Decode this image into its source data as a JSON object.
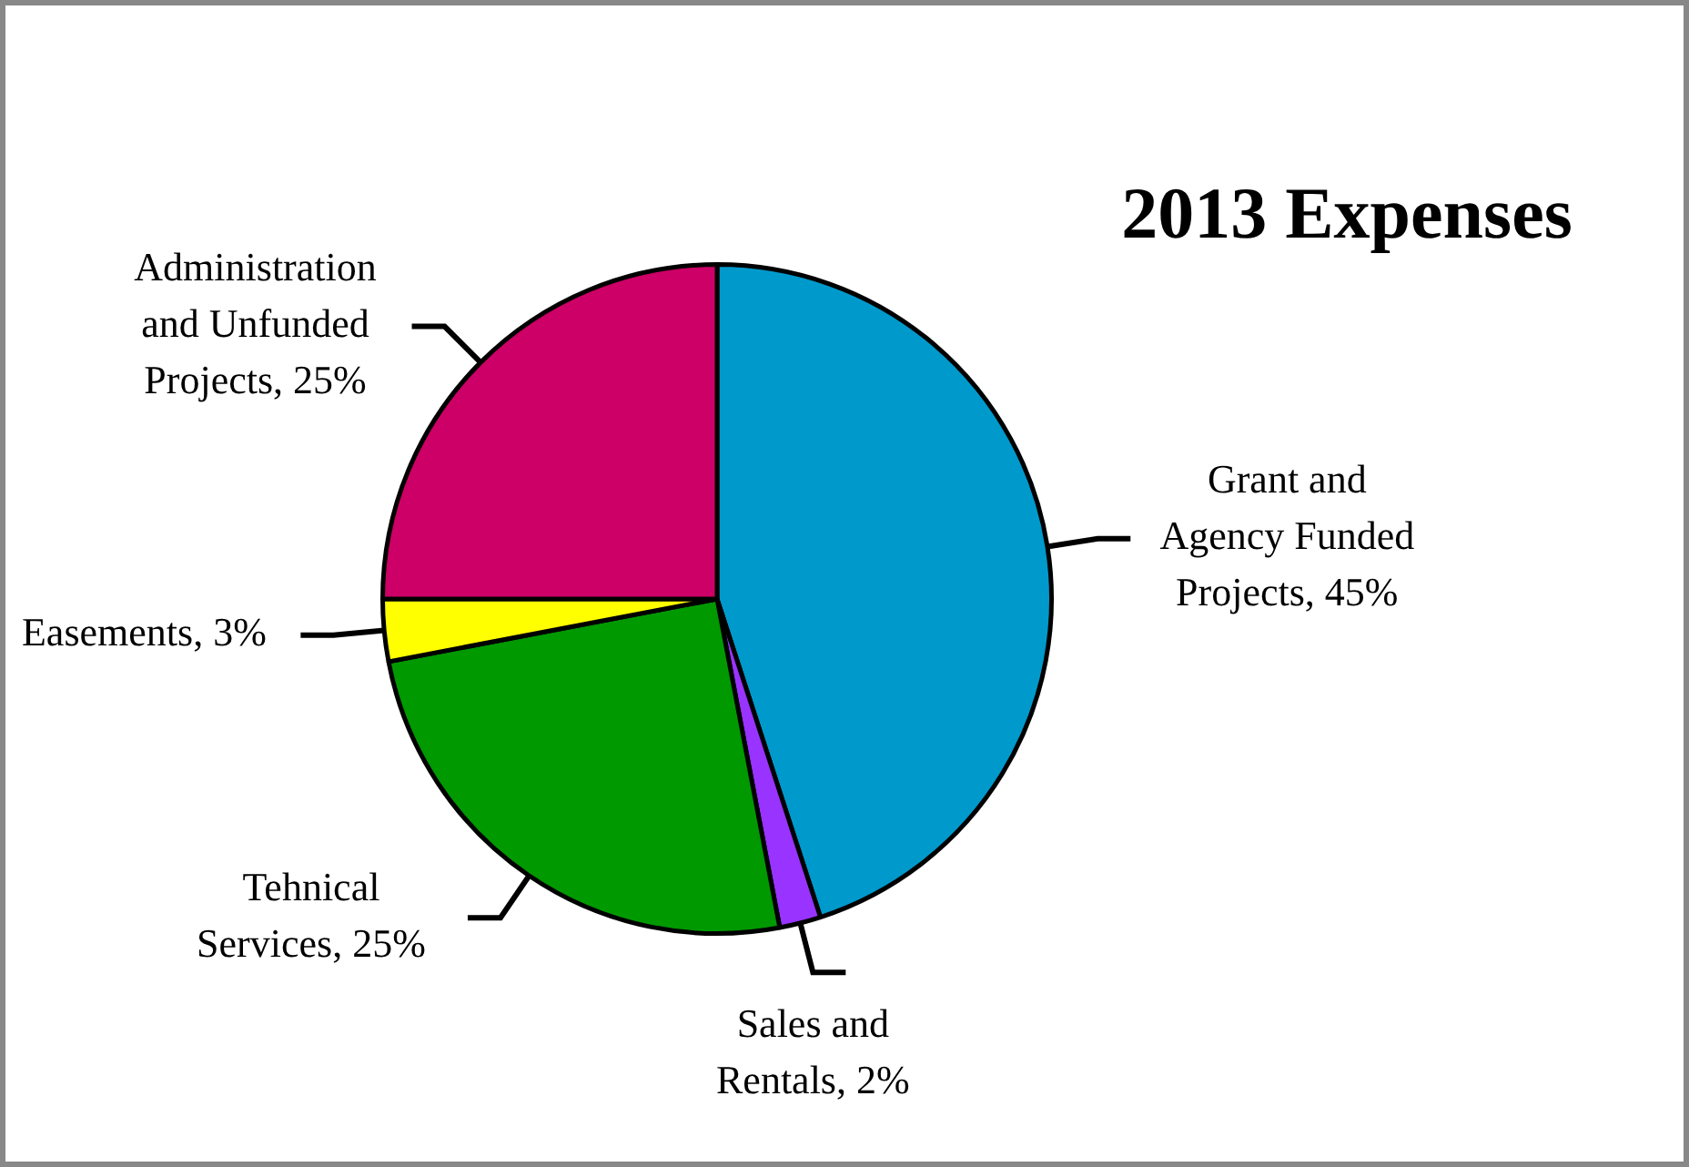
{
  "chart_data": {
    "type": "pie",
    "title": "2013 Expenses",
    "categories": [
      "Grant and Agency Funded Projects",
      "Sales and Rentals",
      "Tehnical Services",
      "Easements",
      "Administration and Unfunded Projects"
    ],
    "values": [
      45,
      2,
      25,
      3,
      25
    ],
    "value_labels": [
      "45%",
      "2%",
      "25%",
      "3%",
      "25%"
    ],
    "colors": [
      "#0099cc",
      "#9933ff",
      "#009900",
      "#ffff00",
      "#cc0066"
    ],
    "legend": false
  }
}
